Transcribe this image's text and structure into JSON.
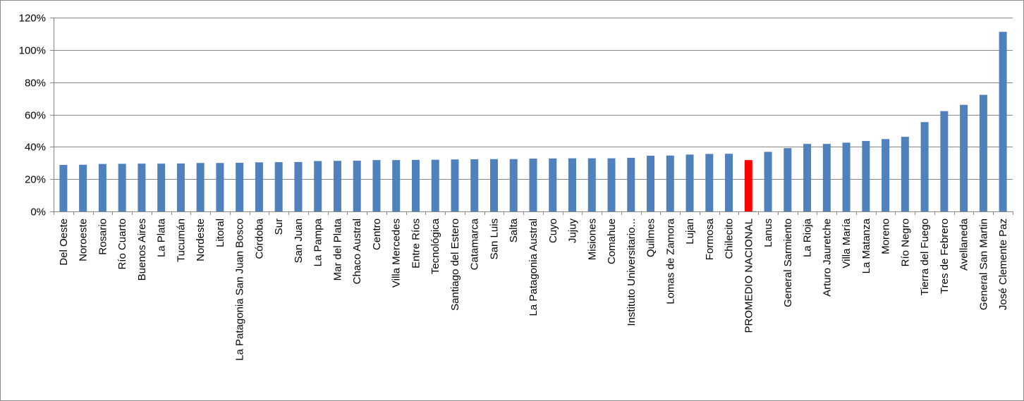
{
  "chart_data": {
    "type": "bar",
    "title": "",
    "xlabel": "",
    "ylabel": "",
    "ylim": [
      0,
      120
    ],
    "y_ticks": [
      "0%",
      "20%",
      "40%",
      "60%",
      "80%",
      "100%",
      "120%"
    ],
    "y_tick_values": [
      0,
      20,
      40,
      60,
      80,
      100,
      120
    ],
    "grid": true,
    "legend": "none",
    "colors": {
      "bar": "#4f81bd",
      "highlight": "#ff0000",
      "grid": "#868686",
      "axis": "#868686"
    },
    "highlight_category": "PROMEDIO NACIONAL",
    "categories": [
      "Del Oeste",
      "Noroeste",
      "Rosario",
      "Río Cuarto",
      "Buenos Aires",
      "La Plata",
      "Tucumán",
      "Nordeste",
      "Litoral",
      "La Patagonia San Juan Bosco",
      "Córdoba",
      "Sur",
      "San Juan",
      "La Pampa",
      "Mar del Plata",
      "Chaco Austral",
      "Centro",
      "Villa Mercedes",
      "Entre Ríos",
      "Tecnológica",
      "Santiago del Estero",
      "Catamarca",
      "San Luis",
      "Salta",
      "La Patagonia Austral",
      "Cuyo",
      "Jujuy",
      "Misiones",
      "Comahue",
      "Instituto Universitario...",
      "Quilmes",
      "Lomas de Zamora",
      "Lujan",
      "Formosa",
      "Chilecito",
      "PROMEDIO NACIONAL",
      "Lanus",
      "General Sarmiento",
      "La Rioja",
      "Arturo Jauretche",
      "Villa María",
      "La Matanza",
      "Moreno",
      "Río Negro",
      "Tierra del Fuego",
      "Tres de Febrero",
      "Avellaneda",
      "General San Martin",
      "José Clemente Paz"
    ],
    "values": [
      28.8,
      28.9,
      29.4,
      29.5,
      29.6,
      29.6,
      29.7,
      30.0,
      30.0,
      30.1,
      30.4,
      30.5,
      30.6,
      31.2,
      31.3,
      31.4,
      31.8,
      31.8,
      31.9,
      32.0,
      32.2,
      32.3,
      32.4,
      32.4,
      32.7,
      32.8,
      32.9,
      32.9,
      32.9,
      33.2,
      34.5,
      34.6,
      35.2,
      35.6,
      35.7,
      31.8,
      36.9,
      39.2,
      41.8,
      41.8,
      42.6,
      43.6,
      44.8,
      46.2,
      55.3,
      62.1,
      66.0,
      72.2,
      111.2
    ]
  }
}
